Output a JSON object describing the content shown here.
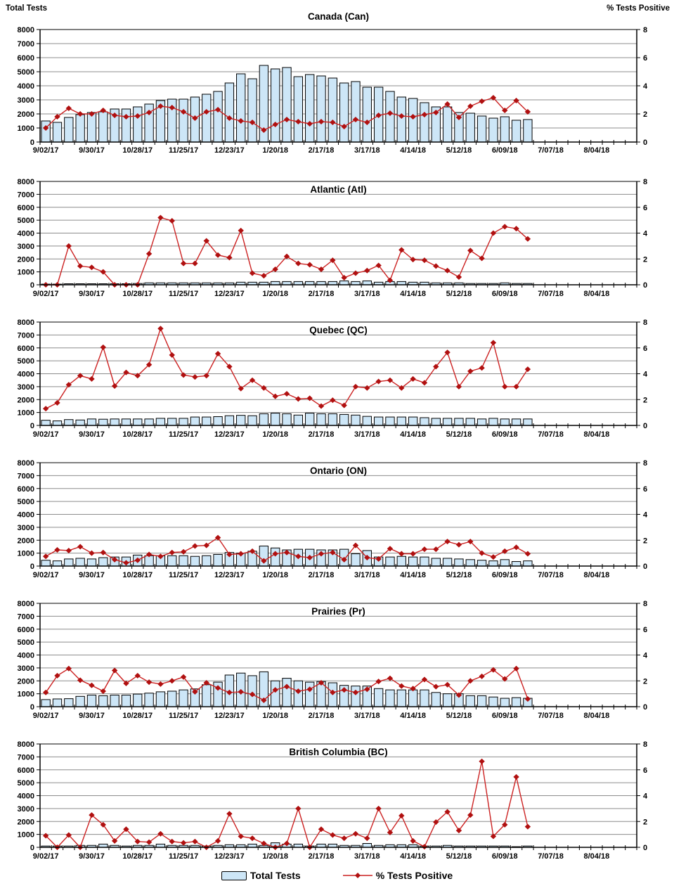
{
  "axes": {
    "left_axis_title": "Total Tests",
    "right_axis_title": "% Tests Positive",
    "left_max": 8000,
    "right_max": 8,
    "left_tick_step": 1000,
    "right_ticks": [
      0,
      2,
      4,
      6,
      8
    ],
    "weeks_span": 52,
    "interval": "weekly",
    "n_points": 43,
    "x_tick_labels": [
      "9/02/17",
      "9/30/17",
      "10/28/17",
      "11/25/17",
      "12/23/17",
      "1/20/18",
      "2/17/18",
      "3/17/18",
      "4/14/18",
      "5/12/18",
      "6/09/18",
      "7/07/18",
      "8/04/18"
    ]
  },
  "legend": {
    "bar_label": "Total Tests",
    "line_label": "% Tests Positive"
  },
  "colors": {
    "bar_fill": "#CDE6F7",
    "bar_stroke": "#000000",
    "line": "#CC2222",
    "marker": "#B01010",
    "grid": "#8C8C8C",
    "axis": "#000000",
    "text": "#000000"
  },
  "chart_data": [
    {
      "type": "bar",
      "subtype": "bar+line-combo",
      "title": "Canada (Can)",
      "xlabel": "",
      "ylabel_left": "Total Tests",
      "ylabel_right": "% Tests Positive",
      "ylim_left": [
        0,
        8000
      ],
      "ylim_right": [
        0,
        8
      ],
      "grid": true,
      "series": [
        {
          "name": "Total Tests",
          "type": "bar",
          "axis": "left",
          "values": [
            1500,
            1400,
            1750,
            1950,
            2100,
            2150,
            2350,
            2350,
            2500,
            2700,
            2950,
            3050,
            3050,
            3200,
            3400,
            3600,
            4200,
            4850,
            4500,
            5450,
            5200,
            5300,
            4650,
            4800,
            4700,
            4550,
            4200,
            4300,
            3900,
            3900,
            3600,
            3200,
            3100,
            2800,
            2500,
            2500,
            2100,
            2050,
            1850,
            1700,
            1800,
            1550,
            1600
          ]
        },
        {
          "name": "% Tests Positive",
          "type": "line",
          "axis": "right",
          "values": [
            1.0,
            1.8,
            2.4,
            2.0,
            2.0,
            2.25,
            1.9,
            1.8,
            1.85,
            2.1,
            2.55,
            2.45,
            2.15,
            1.7,
            2.15,
            2.3,
            1.7,
            1.5,
            1.4,
            0.85,
            1.25,
            1.6,
            1.45,
            1.3,
            1.45,
            1.4,
            1.1,
            1.6,
            1.4,
            1.9,
            2.05,
            1.85,
            1.8,
            1.95,
            2.1,
            2.7,
            1.75,
            2.55,
            2.9,
            3.15,
            2.25,
            2.95,
            2.15
          ]
        }
      ]
    },
    {
      "type": "bar",
      "subtype": "bar+line-combo",
      "title": "Atlantic (Atl)",
      "ylim_left": [
        0,
        8000
      ],
      "ylim_right": [
        0,
        8
      ],
      "grid": true,
      "series": [
        {
          "name": "Total Tests",
          "type": "bar",
          "axis": "left",
          "values": [
            50,
            50,
            80,
            80,
            80,
            80,
            80,
            80,
            100,
            150,
            150,
            150,
            150,
            150,
            150,
            150,
            150,
            200,
            200,
            200,
            250,
            250,
            250,
            250,
            250,
            250,
            300,
            250,
            300,
            200,
            250,
            250,
            200,
            200,
            150,
            150,
            150,
            100,
            100,
            100,
            150,
            100,
            100
          ]
        },
        {
          "name": "% Tests Positive",
          "type": "line",
          "axis": "right",
          "values": [
            0,
            0,
            3.0,
            1.45,
            1.35,
            1.0,
            0,
            0,
            0,
            2.4,
            5.2,
            4.95,
            1.65,
            1.65,
            3.4,
            2.3,
            2.1,
            4.2,
            0.9,
            0.7,
            1.2,
            2.2,
            1.65,
            1.55,
            1.2,
            1.9,
            0.55,
            0.9,
            1.1,
            1.5,
            0.35,
            2.7,
            1.95,
            1.9,
            1.45,
            1.1,
            0.6,
            2.65,
            2.05,
            4.0,
            4.5,
            4.35,
            3.55
          ]
        }
      ]
    },
    {
      "type": "bar",
      "subtype": "bar+line-combo",
      "title": "Quebec (QC)",
      "ylim_left": [
        0,
        8000
      ],
      "ylim_right": [
        0,
        8
      ],
      "grid": true,
      "series": [
        {
          "name": "Total Tests",
          "type": "bar",
          "axis": "left",
          "values": [
            400,
            350,
            450,
            420,
            500,
            480,
            500,
            500,
            500,
            500,
            550,
            550,
            550,
            650,
            650,
            680,
            750,
            780,
            750,
            900,
            950,
            900,
            800,
            950,
            900,
            900,
            850,
            800,
            700,
            650,
            650,
            650,
            650,
            600,
            550,
            550,
            550,
            550,
            500,
            550,
            500,
            500,
            500
          ]
        },
        {
          "name": "% Tests Positive",
          "type": "line",
          "axis": "right",
          "values": [
            1.3,
            1.75,
            3.15,
            3.85,
            3.6,
            6.05,
            3.05,
            4.1,
            3.85,
            4.7,
            7.5,
            5.45,
            3.9,
            3.75,
            3.85,
            5.55,
            4.55,
            2.85,
            3.5,
            2.9,
            2.25,
            2.45,
            2.05,
            2.1,
            1.5,
            1.95,
            1.55,
            3.0,
            2.9,
            3.4,
            3.5,
            2.9,
            3.6,
            3.3,
            4.55,
            5.65,
            3.0,
            4.2,
            4.45,
            6.4,
            3.0,
            3.0,
            4.35
          ]
        }
      ]
    },
    {
      "type": "bar",
      "subtype": "bar+line-combo",
      "title": "Ontario (ON)",
      "ylim_left": [
        0,
        8000
      ],
      "ylim_right": [
        0,
        8
      ],
      "grid": true,
      "series": [
        {
          "name": "Total Tests",
          "type": "bar",
          "axis": "left",
          "values": [
            450,
            400,
            550,
            600,
            550,
            650,
            700,
            700,
            850,
            800,
            800,
            800,
            800,
            750,
            800,
            900,
            1050,
            1000,
            1150,
            1550,
            1400,
            1250,
            1300,
            1300,
            1250,
            1250,
            1300,
            950,
            1200,
            700,
            700,
            750,
            700,
            700,
            600,
            600,
            550,
            500,
            450,
            400,
            500,
            350,
            400
          ]
        },
        {
          "name": "% Tests Positive",
          "type": "line",
          "axis": "right",
          "values": [
            0.75,
            1.25,
            1.2,
            1.5,
            1.0,
            1.05,
            0.5,
            0.25,
            0.45,
            0.9,
            0.75,
            1.05,
            1.1,
            1.55,
            1.6,
            2.2,
            0.9,
            0.95,
            1.15,
            0.4,
            0.95,
            1.05,
            0.75,
            0.65,
            0.95,
            1.05,
            0.5,
            1.6,
            0.65,
            0.55,
            1.35,
            0.95,
            0.95,
            1.3,
            1.3,
            1.9,
            1.65,
            1.9,
            1.0,
            0.7,
            1.15,
            1.45,
            0.95
          ]
        }
      ]
    },
    {
      "type": "bar",
      "subtype": "bar+line-combo",
      "title": "Prairies (Pr)",
      "ylim_left": [
        0,
        8000
      ],
      "ylim_right": [
        0,
        8
      ],
      "grid": true,
      "series": [
        {
          "name": "Total Tests",
          "type": "bar",
          "axis": "left",
          "values": [
            550,
            600,
            620,
            800,
            900,
            850,
            900,
            900,
            975,
            1050,
            1150,
            1200,
            1300,
            1375,
            1700,
            1900,
            2450,
            2600,
            2400,
            2700,
            2000,
            2200,
            2000,
            1900,
            1950,
            1850,
            1650,
            1600,
            1600,
            1400,
            1300,
            1300,
            1300,
            1300,
            1100,
            1000,
            1000,
            850,
            850,
            750,
            650,
            700,
            650
          ]
        },
        {
          "name": "% Tests Positive",
          "type": "line",
          "axis": "right",
          "values": [
            1.1,
            2.4,
            2.95,
            2.05,
            1.65,
            1.2,
            2.8,
            1.8,
            2.4,
            1.9,
            1.75,
            2.0,
            2.3,
            1.15,
            1.85,
            1.45,
            1.1,
            1.15,
            0.95,
            0.5,
            1.3,
            1.55,
            1.2,
            1.35,
            1.85,
            1.1,
            1.3,
            1.1,
            1.35,
            1.95,
            2.2,
            1.6,
            1.4,
            2.1,
            1.55,
            1.7,
            0.9,
            2.0,
            2.35,
            2.85,
            2.15,
            2.95,
            0.6
          ]
        }
      ]
    },
    {
      "type": "bar",
      "subtype": "bar+line-combo",
      "title": "British Columbia (BC)",
      "ylim_left": [
        0,
        8000
      ],
      "ylim_right": [
        0,
        8
      ],
      "grid": true,
      "series": [
        {
          "name": "Total Tests",
          "type": "bar",
          "axis": "left",
          "values": [
            100,
            100,
            100,
            150,
            150,
            250,
            150,
            100,
            150,
            150,
            250,
            150,
            150,
            150,
            100,
            150,
            200,
            200,
            250,
            150,
            350,
            250,
            250,
            100,
            250,
            250,
            150,
            150,
            300,
            150,
            200,
            200,
            200,
            100,
            100,
            150,
            100,
            100,
            100,
            100,
            100,
            50,
            100
          ]
        },
        {
          "name": "% Tests Positive",
          "type": "line",
          "axis": "right",
          "values": [
            0.9,
            0,
            0.95,
            0,
            2.5,
            1.75,
            0.5,
            1.4,
            0.45,
            0.4,
            1.05,
            0.45,
            0.35,
            0.45,
            0,
            0.5,
            2.6,
            0.85,
            0.7,
            0.3,
            0,
            0.3,
            3.0,
            0,
            1.4,
            0.95,
            0.7,
            1.05,
            0.7,
            3.0,
            1.15,
            2.45,
            0.5,
            0.05,
            1.95,
            2.75,
            1.3,
            2.5,
            6.65,
            0.85,
            1.75,
            5.45,
            1.6
          ]
        }
      ]
    }
  ]
}
